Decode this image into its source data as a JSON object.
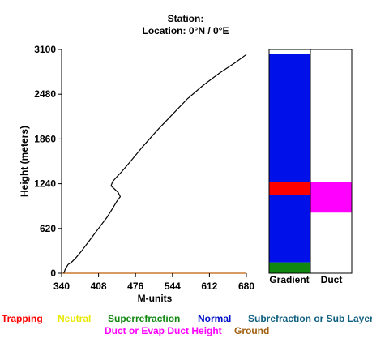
{
  "header": {
    "station_line": "Station:",
    "location_line": "Location:   0°N /   0°E"
  },
  "chart_data": {
    "type": "line",
    "title": "",
    "xlabel": "M-units",
    "ylabel": "Height (meters)",
    "xlim": [
      340,
      680
    ],
    "ylim": [
      0,
      3100
    ],
    "x_ticks": [
      "340",
      "408",
      "476",
      "544",
      "612",
      "680"
    ],
    "y_ticks": [
      "0",
      "620",
      "1240",
      "1860",
      "2480",
      "3100"
    ],
    "series": [
      {
        "color": "#000000",
        "points": [
          [
            344,
            0
          ],
          [
            347,
            60
          ],
          [
            352,
            120
          ],
          [
            358,
            150
          ],
          [
            366,
            210
          ],
          [
            376,
            300
          ],
          [
            388,
            420
          ],
          [
            400,
            540
          ],
          [
            412,
            660
          ],
          [
            424,
            780
          ],
          [
            434,
            900
          ],
          [
            442,
            1000
          ],
          [
            448,
            1060
          ],
          [
            444,
            1120
          ],
          [
            437,
            1170
          ],
          [
            431,
            1210
          ],
          [
            434,
            1270
          ],
          [
            441,
            1330
          ],
          [
            451,
            1410
          ],
          [
            468,
            1560
          ],
          [
            490,
            1760
          ],
          [
            516,
            1980
          ],
          [
            544,
            2200
          ],
          [
            572,
            2420
          ],
          [
            600,
            2600
          ],
          [
            630,
            2770
          ],
          [
            660,
            2920
          ],
          [
            680,
            3030
          ]
        ]
      }
    ],
    "baseline": {
      "value": 0,
      "color": "#c87832"
    },
    "gradient_panel": {
      "label": "Gradient",
      "segments": [
        {
          "from": 0,
          "to": 150,
          "color": "#108810",
          "class": "Superrefraction"
        },
        {
          "from": 150,
          "to": 1080,
          "color": "#0010e8",
          "class": "Normal"
        },
        {
          "from": 1080,
          "to": 1260,
          "color": "#ff0000",
          "class": "Trapping"
        },
        {
          "from": 1260,
          "to": 3040,
          "color": "#0010e8",
          "class": "Normal"
        }
      ]
    },
    "duct_panel": {
      "label": "Duct",
      "segments": [
        {
          "from": 840,
          "to": 1260,
          "color": "#ff00ff",
          "class": "Duct or Evap Duct Height"
        }
      ]
    }
  },
  "legend": {
    "items": [
      {
        "label": "Trapping",
        "color": "#ff0000"
      },
      {
        "label": "Neutral",
        "color": "#e8e800"
      },
      {
        "label": "Superrefraction",
        "color": "#108810"
      },
      {
        "label": "Normal",
        "color": "#0010c8"
      },
      {
        "label": "Subrefraction or Sub Layer",
        "color": "#106080"
      },
      {
        "label": "Duct or Evap Duct Height",
        "color": "#ff00ff"
      },
      {
        "label": "Ground",
        "color": "#a06010"
      }
    ]
  }
}
